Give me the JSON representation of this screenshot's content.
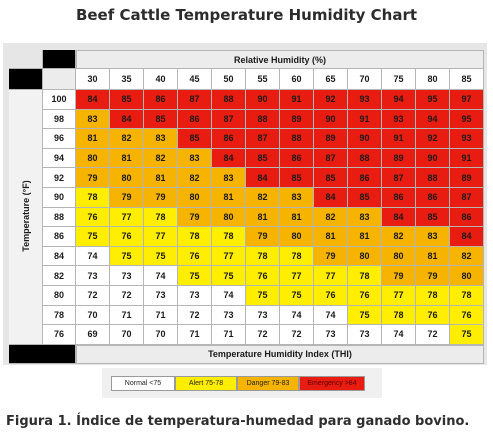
{
  "title": "Beef Cattle Temperature Humidity Chart",
  "caption": "Figura 1. Índice de temperatura-humedad para ganado bovino.",
  "colors": {
    "normal": "#ffffff",
    "alert": "#ffee00",
    "danger": "#f6b400",
    "emergency": "#e81c10"
  },
  "chart_data": {
    "type": "heatmap",
    "title": "Beef Cattle Temperature Humidity Chart",
    "xlabel": "Relative Humidity (%)",
    "ylabel": "Temperature (°F)",
    "zlabel": "Temperature Humidity Index (THI)",
    "x": [
      30,
      35,
      40,
      45,
      50,
      55,
      60,
      65,
      70,
      75,
      80,
      85
    ],
    "y": [
      100,
      98,
      96,
      94,
      92,
      90,
      88,
      86,
      84,
      82,
      80,
      78,
      76
    ],
    "values": [
      [
        84,
        85,
        86,
        87,
        88,
        90,
        91,
        92,
        93,
        94,
        95,
        97
      ],
      [
        83,
        84,
        85,
        86,
        87,
        88,
        89,
        90,
        91,
        93,
        94,
        95
      ],
      [
        81,
        82,
        83,
        85,
        86,
        87,
        88,
        89,
        90,
        91,
        92,
        93
      ],
      [
        80,
        81,
        82,
        83,
        84,
        85,
        86,
        87,
        88,
        89,
        90,
        91
      ],
      [
        79,
        80,
        81,
        82,
        83,
        84,
        85,
        85,
        86,
        87,
        88,
        89
      ],
      [
        78,
        79,
        79,
        80,
        81,
        82,
        83,
        84,
        85,
        86,
        86,
        87
      ],
      [
        76,
        77,
        78,
        79,
        80,
        81,
        81,
        82,
        83,
        84,
        85,
        86
      ],
      [
        75,
        76,
        77,
        78,
        78,
        79,
        80,
        81,
        81,
        82,
        83,
        84
      ],
      [
        74,
        75,
        75,
        76,
        77,
        78,
        78,
        79,
        80,
        80,
        81,
        82
      ],
      [
        73,
        73,
        74,
        75,
        75,
        76,
        77,
        77,
        78,
        79,
        79,
        80
      ],
      [
        72,
        72,
        73,
        73,
        74,
        75,
        75,
        76,
        76,
        77,
        78,
        78
      ],
      [
        70,
        71,
        71,
        72,
        73,
        73,
        74,
        74,
        75,
        78,
        76,
        76
      ],
      [
        69,
        70,
        70,
        71,
        71,
        72,
        72,
        73,
        73,
        74,
        72,
        75
      ]
    ],
    "categories": [
      {
        "name": "Normal <75",
        "max": 74,
        "color": "#ffffff"
      },
      {
        "name": "Alert 75-78",
        "min": 75,
        "max": 78,
        "color": "#ffee00"
      },
      {
        "name": "Danger 79-83",
        "min": 79,
        "max": 83,
        "color": "#f6b400"
      },
      {
        "name": "Emergency >84",
        "min": 84,
        "color": "#e81c10"
      }
    ]
  }
}
